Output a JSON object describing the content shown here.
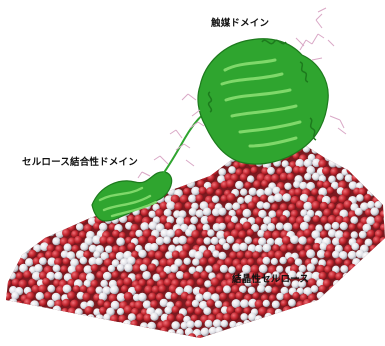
{
  "labels": {
    "catalytic_domain": "触媒ドメイン",
    "cellulose_binding_domain": "セルロース結合性ドメイン",
    "crystalline_cellulose": "結晶性セルロース"
  },
  "colors": {
    "protein": "#2fa52f",
    "protein_dark": "#1d7a1d",
    "protein_light": "#7fd86a",
    "oxygen": "#c2262f",
    "hydrogen": "#e6e6ea",
    "glycan_stick": "#d9a8c6"
  }
}
